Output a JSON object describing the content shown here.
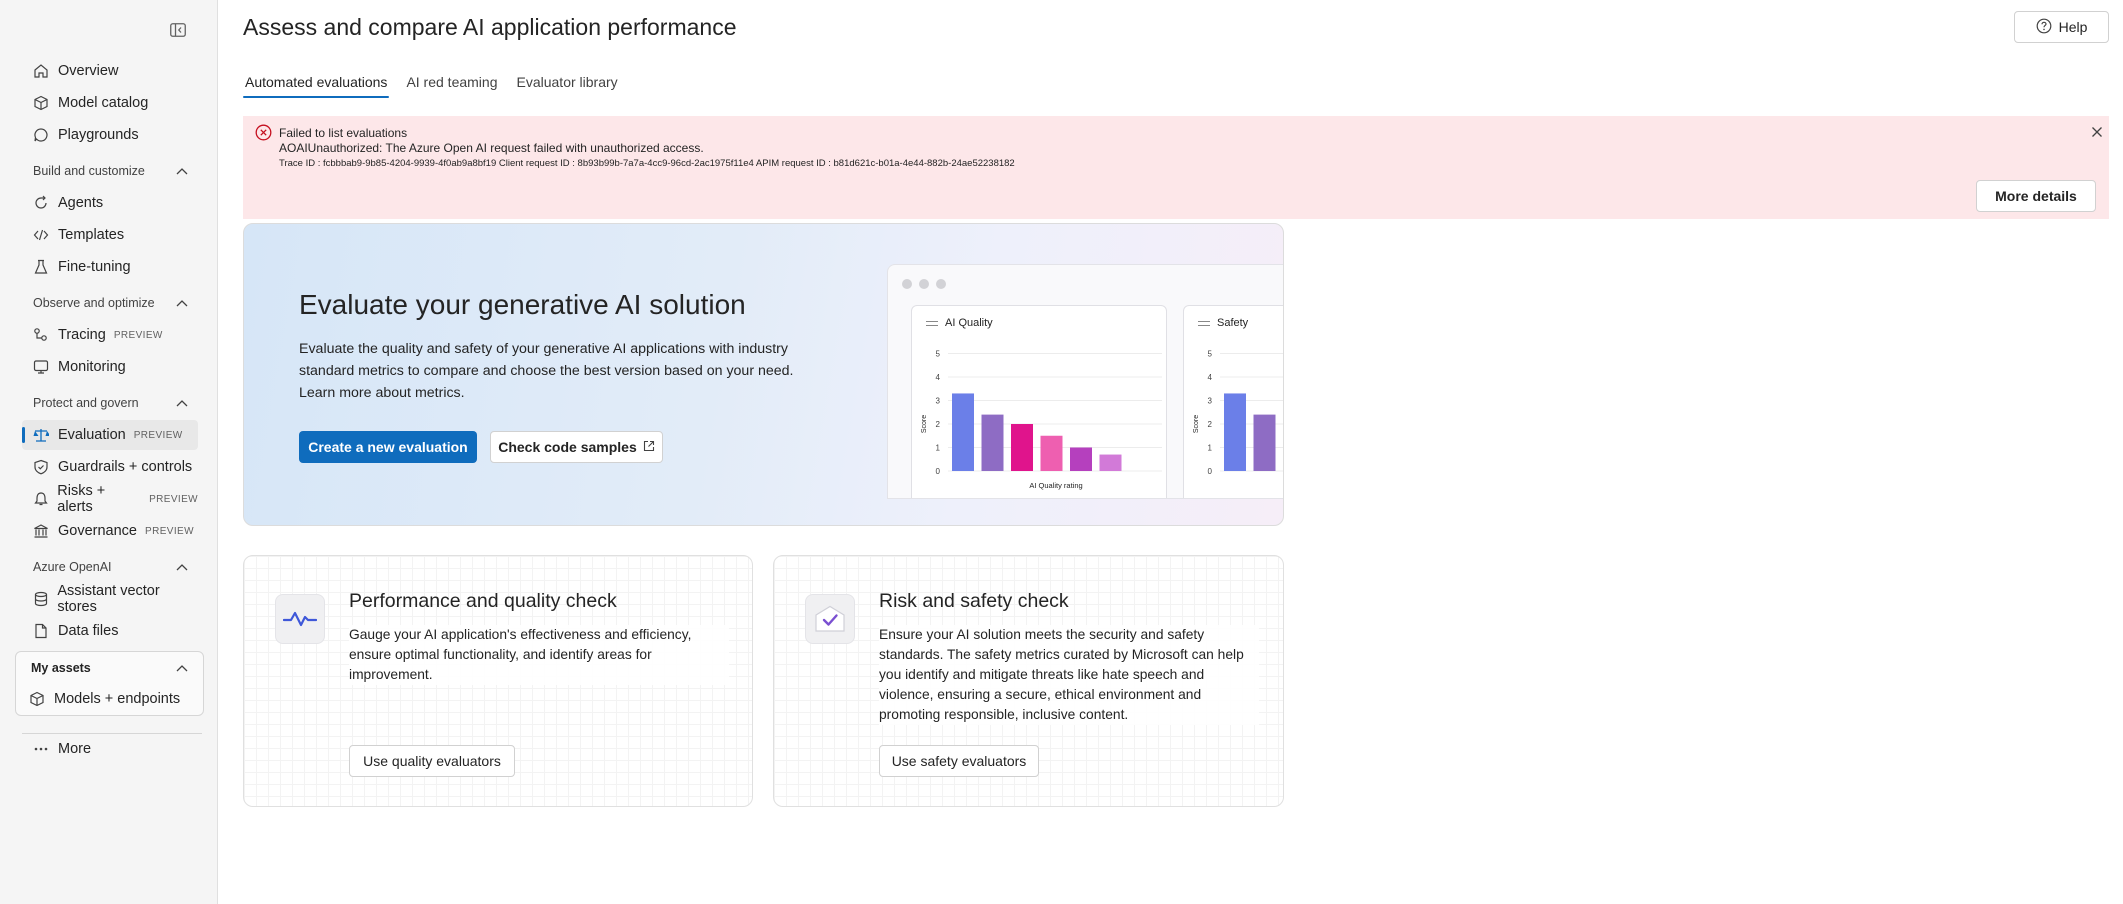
{
  "sidebar": {
    "items": {
      "overview": "Overview",
      "model_catalog": "Model catalog",
      "playgrounds": "Playgrounds",
      "agents": "Agents",
      "templates": "Templates",
      "fine_tuning": "Fine-tuning",
      "tracing": "Tracing",
      "monitoring": "Monitoring",
      "evaluation": "Evaluation",
      "guardrails": "Guardrails + controls",
      "risks": "Risks + alerts",
      "governance": "Governance",
      "vector_stores": "Assistant vector stores",
      "data_files": "Data files",
      "models_endpoints": "Models + endpoints",
      "more": "More"
    },
    "sections": {
      "build": "Build and customize",
      "observe": "Observe and optimize",
      "protect": "Protect and govern",
      "azure_openai": "Azure OpenAI",
      "my_assets": "My assets"
    },
    "badge_preview": "PREVIEW"
  },
  "header": {
    "title": "Assess and compare AI application performance",
    "help": "Help"
  },
  "tabs": [
    "Automated evaluations",
    "AI red teaming",
    "Evaluator library"
  ],
  "error": {
    "title": "Failed to list evaluations",
    "message": "AOAIUnauthorized: The Azure Open AI request failed with unauthorized access.",
    "trace": "Trace ID : fcbbbab9-9b85-4204-9939-4f0ab9a8bf19  Client request ID : 8b93b99b-7a7a-4cc9-96cd-2ac1975f11e4  APIM request ID : b81d621c-b01a-4e44-882b-24ae52238182",
    "more_details": "More details"
  },
  "hero": {
    "title": "Evaluate your generative AI solution",
    "description": "Evaluate the quality and safety of your generative AI applications with industry standard metrics to compare and choose the best version based on your need. Learn more about metrics.",
    "primary_button": "Create a new evaluation",
    "secondary_button": "Check code samples",
    "mock": {
      "quality_title": "AI Quality",
      "safety_title": "Safety",
      "y_label": "Score",
      "x_label": "AI Quality rating",
      "y_ticks": [
        "0",
        "1",
        "2",
        "3",
        "4",
        "5"
      ],
      "quality_values": [
        3.3,
        2.4,
        2.0,
        1.5,
        1.0,
        0.7
      ],
      "quality_colors": [
        "#6b7fe8",
        "#8e6cc4",
        "#e0148c",
        "#ee5fb0",
        "#b540be",
        "#d27ad8"
      ],
      "safety_values": [
        3.3,
        2.4
      ],
      "safety_colors": [
        "#6b7fe8",
        "#8e6cc4"
      ]
    }
  },
  "cards": {
    "quality": {
      "title": "Performance and quality check",
      "description": "Gauge your AI application's effectiveness and efficiency, ensure optimal functionality, and identify areas for improvement.",
      "button": "Use quality evaluators"
    },
    "safety": {
      "title": "Risk and safety check",
      "description": "Ensure your AI solution meets the security and safety standards. The safety metrics curated by Microsoft can help you identify and mitigate threats like hate speech and violence, ensuring a secure, ethical environment and promoting responsible, inclusive content.",
      "button": "Use safety evaluators"
    }
  }
}
